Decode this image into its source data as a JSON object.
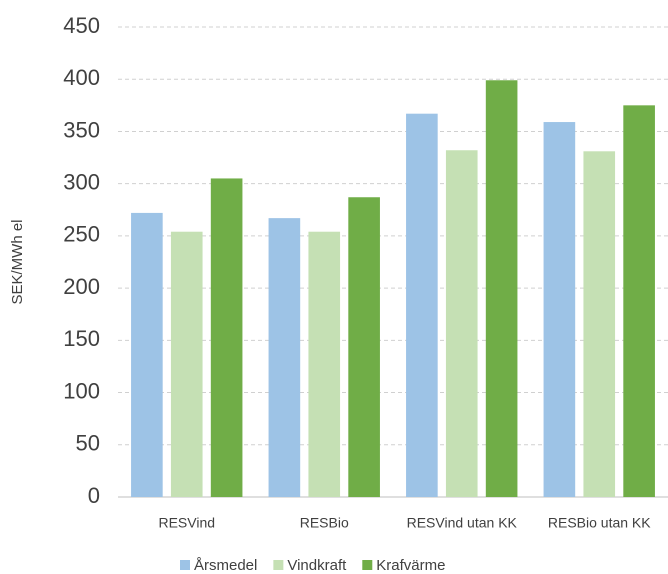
{
  "chart_data": {
    "type": "bar",
    "y_label": "SEK/MWh el",
    "categories": [
      "RESVind",
      "RESBio",
      "RESVind utan KK",
      "RESBio utan KK"
    ],
    "series": [
      {
        "name": "Årsmedel",
        "color": "#9dc3e6",
        "values": [
          272,
          267,
          367,
          359
        ]
      },
      {
        "name": "Vindkraft",
        "color": "#c5e0b4",
        "values": [
          254,
          254,
          332,
          331
        ]
      },
      {
        "name": "Krafvärme",
        "color": "#70ad47",
        "values": [
          305,
          287,
          399,
          375
        ]
      }
    ],
    "ylim": [
      0,
      450
    ],
    "yticks": [
      0,
      50,
      100,
      150,
      200,
      250,
      300,
      350,
      400,
      450
    ],
    "grid": true
  }
}
